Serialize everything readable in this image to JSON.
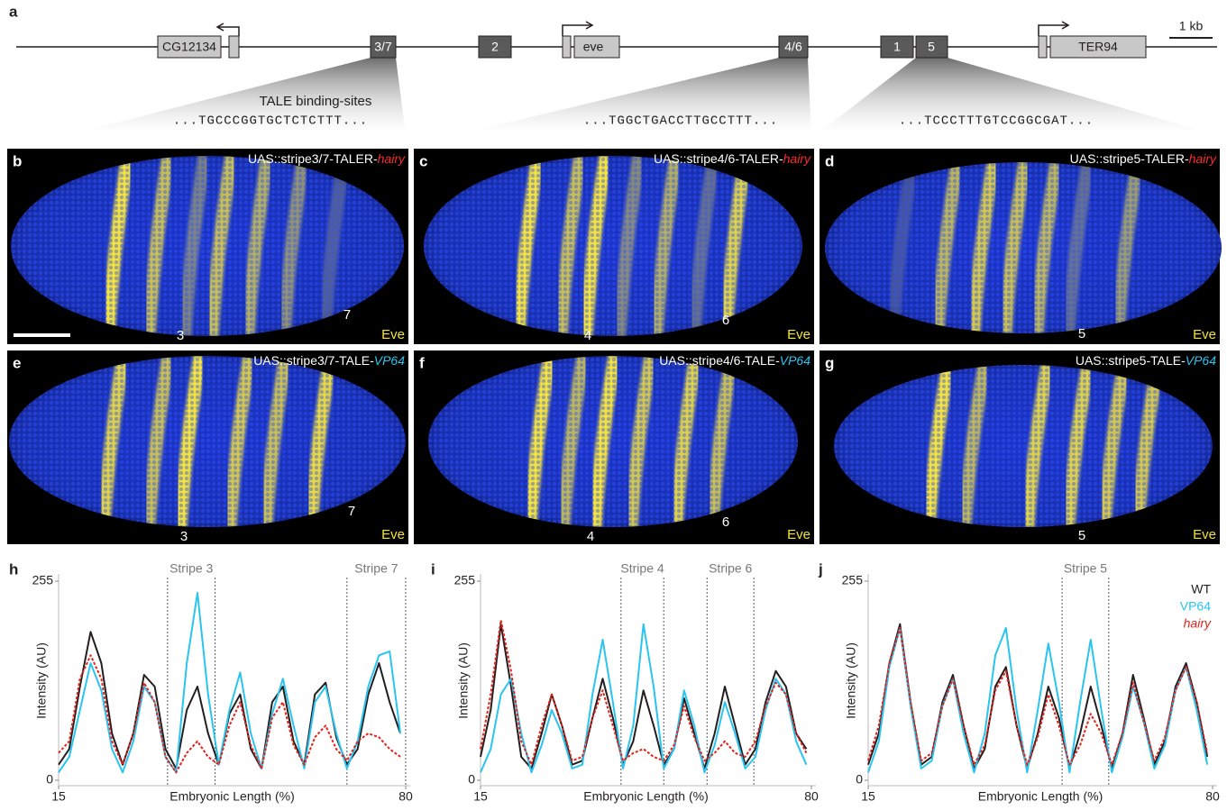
{
  "gene_map": {
    "panel": "a",
    "genes": [
      "CG12134",
      "eve",
      "TER94"
    ],
    "enhancers": [
      "3/7",
      "2",
      "4/6",
      "1",
      "5"
    ],
    "scale": "1 kb",
    "binding_sites_label": "TALE binding-sites",
    "sequences": [
      "...TGCCCGGTGCTCTCTTT...",
      "...TGGCTGACCTTGCCTTT...",
      "...TCCCTTTGTCCGGCGAT..."
    ]
  },
  "embryos": [
    {
      "panel": "b",
      "construct": "UAS::stripe3/7-TALER-",
      "effector": "hairy",
      "stripes": [
        "3",
        "7"
      ],
      "stain": "Eve"
    },
    {
      "panel": "c",
      "construct": "UAS::stripe4/6-TALER-",
      "effector": "hairy",
      "stripes": [
        "4",
        "6"
      ],
      "stain": "Eve"
    },
    {
      "panel": "d",
      "construct": "UAS::stripe5-TALER-",
      "effector": "hairy",
      "stripes": [
        "5"
      ],
      "stain": "Eve"
    },
    {
      "panel": "e",
      "construct": "UAS::stripe3/7-TALE-",
      "effector": "VP64",
      "stripes": [
        "3",
        "7"
      ],
      "stain": "Eve"
    },
    {
      "panel": "f",
      "construct": "UAS::stripe4/6-TALE-",
      "effector": "VP64",
      "stripes": [
        "4",
        "6"
      ],
      "stain": "Eve"
    },
    {
      "panel": "g",
      "construct": "UAS::stripe5-TALE-",
      "effector": "VP64",
      "stripes": [
        "5"
      ],
      "stain": "Eve"
    }
  ],
  "chart_data": [
    {
      "type": "line",
      "panel": "h",
      "xlabel": "Embryonic Length (%)",
      "ylabel": "Intensity (AU)",
      "xlim": [
        15,
        80
      ],
      "ylim": [
        0,
        255
      ],
      "xticks": [
        15,
        80
      ],
      "yticks": [
        0,
        255
      ],
      "annotations": [
        {
          "label": "Stripe 3",
          "x": [
            35.4,
            44.3
          ]
        },
        {
          "label": "Stripe 7",
          "x": [
            69,
            80
          ]
        }
      ],
      "x": [
        15,
        17,
        19,
        21,
        23,
        25,
        27,
        29,
        31,
        33,
        35,
        37,
        39,
        41,
        43,
        45,
        47,
        49,
        51,
        53,
        55,
        57,
        59,
        61,
        63,
        65,
        67,
        69,
        71,
        73,
        75,
        77,
        79
      ],
      "series": [
        {
          "name": "WT",
          "color": "#231f20",
          "dash": "solid",
          "values": [
            20,
            40,
            120,
            190,
            150,
            60,
            20,
            60,
            135,
            120,
            40,
            15,
            90,
            120,
            60,
            20,
            85,
            110,
            40,
            15,
            100,
            120,
            50,
            20,
            110,
            125,
            55,
            20,
            40,
            110,
            150,
            100,
            60
          ]
        },
        {
          "name": "VP64",
          "color": "#29c5f0",
          "dash": "solid",
          "values": [
            10,
            30,
            90,
            150,
            115,
            40,
            10,
            50,
            120,
            100,
            30,
            10,
            150,
            240,
            110,
            20,
            90,
            138,
            60,
            15,
            85,
            130,
            70,
            15,
            100,
            120,
            60,
            15,
            50,
            120,
            160,
            165,
            60
          ]
        },
        {
          "name": "hairy",
          "color": "#e2231a",
          "dash": "dotted",
          "values": [
            35,
            50,
            130,
            160,
            130,
            50,
            20,
            60,
            125,
            100,
            30,
            10,
            35,
            50,
            30,
            20,
            70,
            100,
            45,
            15,
            80,
            100,
            45,
            20,
            55,
            70,
            40,
            25,
            50,
            60,
            55,
            40,
            30
          ]
        }
      ]
    },
    {
      "type": "line",
      "panel": "i",
      "xlabel": "Embryonic Length (%)",
      "ylabel": "Intensity (AU)",
      "xlim": [
        15,
        80
      ],
      "ylim": [
        0,
        255
      ],
      "xticks": [
        15,
        80
      ],
      "yticks": [
        0,
        255
      ],
      "annotations": [
        {
          "label": "Stripe 4",
          "x": [
            42.6,
            51
          ]
        },
        {
          "label": "Stripe 6",
          "x": [
            59.5,
            68.7
          ]
        }
      ],
      "x": [
        15,
        17,
        19,
        21,
        23,
        25,
        27,
        29,
        31,
        33,
        35,
        37,
        39,
        41,
        43,
        45,
        47,
        49,
        51,
        53,
        55,
        57,
        59,
        61,
        63,
        65,
        67,
        69,
        71,
        73,
        75,
        77,
        79
      ],
      "series": [
        {
          "name": "WT",
          "color": "#231f20",
          "dash": "solid",
          "values": [
            30,
            90,
            200,
            120,
            30,
            15,
            60,
            110,
            70,
            20,
            25,
            80,
            130,
            80,
            20,
            50,
            115,
            70,
            20,
            40,
            105,
            60,
            15,
            60,
            120,
            70,
            20,
            40,
            100,
            140,
            120,
            60,
            40
          ]
        },
        {
          "name": "VP64",
          "color": "#29c5f0",
          "dash": "solid",
          "values": [
            10,
            40,
            110,
            130,
            60,
            10,
            45,
            90,
            60,
            15,
            20,
            110,
            180,
            100,
            15,
            70,
            200,
            120,
            15,
            40,
            115,
            70,
            10,
            45,
            100,
            60,
            15,
            30,
            90,
            130,
            110,
            50,
            20
          ]
        },
        {
          "name": "hairy",
          "color": "#e2231a",
          "dash": "dotted",
          "values": [
            40,
            110,
            205,
            140,
            50,
            20,
            70,
            110,
            70,
            25,
            30,
            80,
            115,
            70,
            25,
            35,
            40,
            30,
            25,
            45,
            95,
            55,
            25,
            35,
            50,
            35,
            30,
            50,
            95,
            125,
            110,
            60,
            35
          ]
        }
      ]
    },
    {
      "type": "line",
      "panel": "j",
      "xlabel": "Embryonic Length (%)",
      "ylabel": "Intensity (AU)",
      "xlim": [
        15,
        80
      ],
      "ylim": [
        0,
        255
      ],
      "xticks": [
        15,
        80
      ],
      "yticks": [
        0,
        255
      ],
      "legend": "upper right",
      "annotations": [
        {
          "label": "Stripe 5",
          "x": [
            51.6,
            60.4
          ]
        }
      ],
      "x": [
        15,
        17,
        19,
        21,
        23,
        25,
        27,
        29,
        31,
        33,
        35,
        37,
        39,
        41,
        43,
        45,
        47,
        49,
        51,
        53,
        55,
        57,
        59,
        61,
        63,
        65,
        67,
        69,
        71,
        73,
        75,
        77,
        79
      ],
      "series": [
        {
          "name": "WT",
          "color": "#231f20",
          "dash": "solid",
          "values": [
            20,
            60,
            150,
            200,
            100,
            20,
            30,
            100,
            135,
            70,
            15,
            40,
            120,
            145,
            70,
            15,
            60,
            120,
            80,
            15,
            60,
            120,
            70,
            15,
            60,
            135,
            80,
            20,
            50,
            120,
            150,
            100,
            30
          ]
        },
        {
          "name": "VP64",
          "color": "#29c5f0",
          "dash": "solid",
          "values": [
            10,
            50,
            145,
            195,
            95,
            15,
            25,
            95,
            130,
            60,
            10,
            60,
            160,
            195,
            90,
            10,
            90,
            175,
            100,
            10,
            100,
            180,
            90,
            10,
            55,
            120,
            75,
            15,
            45,
            115,
            145,
            90,
            20
          ]
        },
        {
          "name": "hairy",
          "color": "#e2231a",
          "dash": "dotted",
          "values": [
            25,
            70,
            150,
            195,
            100,
            25,
            35,
            95,
            130,
            70,
            20,
            45,
            115,
            140,
            70,
            20,
            55,
            110,
            70,
            20,
            45,
            85,
            60,
            20,
            60,
            125,
            75,
            25,
            55,
            115,
            145,
            100,
            35
          ]
        }
      ]
    }
  ]
}
